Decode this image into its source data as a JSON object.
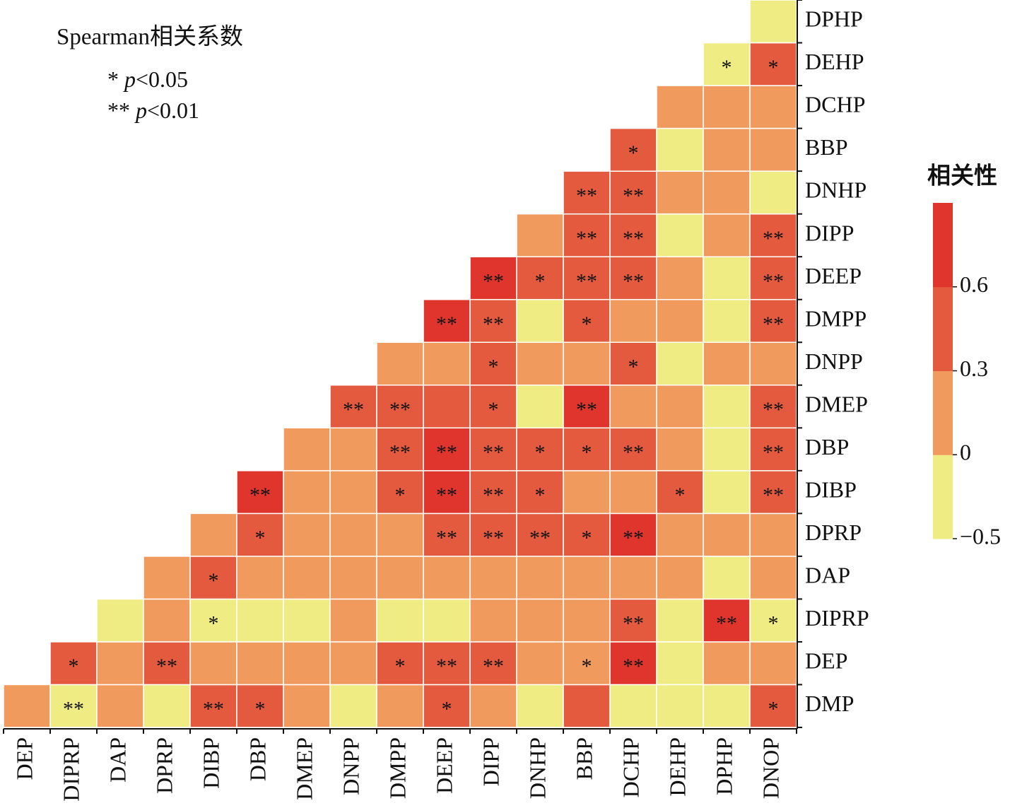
{
  "chart_data": {
    "type": "heatmap",
    "title": "Spearman相关系数",
    "significance": [
      {
        "mark": "*",
        "var": "p",
        "condition": "<0.05"
      },
      {
        "mark": "**",
        "var": "p",
        "condition": "<0.01"
      }
    ],
    "x": [
      "DEP",
      "DIPRP",
      "DAP",
      "DPRP",
      "DIBP",
      "DBP",
      "DMEP",
      "DNPP",
      "DMPP",
      "DEEP",
      "DIPP",
      "DNHP",
      "BBP",
      "DCHP",
      "DEHP",
      "DPHP",
      "DNOP"
    ],
    "y": [
      "DMP",
      "DEP",
      "DIPRP",
      "DAP",
      "DPRP",
      "DIBP",
      "DBP",
      "DMEP",
      "DNPP",
      "DMPP",
      "DEEP",
      "DIPP",
      "DNHP",
      "BBP",
      "DCHP",
      "DEHP",
      "DPHP"
    ],
    "z": [
      [
        0.15,
        -0.2,
        0.15,
        -0.2,
        0.45,
        0.45,
        0.15,
        -0.2,
        0.15,
        0.45,
        0.15,
        -0.2,
        0.45,
        -0.2,
        -0.2,
        -0.2,
        0.45
      ],
      [
        null,
        0.45,
        0.15,
        0.45,
        0.15,
        0.15,
        0.15,
        0.15,
        0.45,
        0.45,
        0.45,
        0.15,
        0.15,
        0.7,
        -0.2,
        0.15,
        0.15
      ],
      [
        null,
        null,
        -0.2,
        0.15,
        -0.2,
        -0.2,
        -0.2,
        0.15,
        -0.2,
        -0.2,
        0.15,
        0.15,
        0.15,
        0.45,
        -0.2,
        0.7,
        -0.2
      ],
      [
        null,
        null,
        null,
        0.15,
        0.45,
        0.15,
        0.15,
        0.15,
        0.15,
        0.15,
        0.15,
        0.15,
        0.15,
        0.15,
        0.15,
        -0.2,
        0.15
      ],
      [
        null,
        null,
        null,
        null,
        0.15,
        0.45,
        0.15,
        0.15,
        0.15,
        0.45,
        0.45,
        0.45,
        0.45,
        0.7,
        0.15,
        0.15,
        0.15
      ],
      [
        null,
        null,
        null,
        null,
        null,
        0.7,
        0.15,
        0.15,
        0.45,
        0.7,
        0.45,
        0.45,
        0.15,
        0.15,
        0.45,
        -0.2,
        0.45
      ],
      [
        null,
        null,
        null,
        null,
        null,
        null,
        0.15,
        0.15,
        0.45,
        0.7,
        0.45,
        0.45,
        0.45,
        0.45,
        0.15,
        -0.2,
        0.45
      ],
      [
        null,
        null,
        null,
        null,
        null,
        null,
        null,
        0.45,
        0.45,
        0.45,
        0.45,
        -0.2,
        0.7,
        0.15,
        0.15,
        -0.2,
        0.45
      ],
      [
        null,
        null,
        null,
        null,
        null,
        null,
        null,
        null,
        0.15,
        0.15,
        0.45,
        0.15,
        0.15,
        0.45,
        -0.2,
        0.15,
        0.15
      ],
      [
        null,
        null,
        null,
        null,
        null,
        null,
        null,
        null,
        null,
        0.7,
        0.45,
        -0.2,
        0.45,
        0.15,
        0.15,
        -0.2,
        0.45
      ],
      [
        null,
        null,
        null,
        null,
        null,
        null,
        null,
        null,
        null,
        null,
        0.7,
        0.45,
        0.45,
        0.45,
        0.15,
        -0.2,
        0.45
      ],
      [
        null,
        null,
        null,
        null,
        null,
        null,
        null,
        null,
        null,
        null,
        null,
        0.15,
        0.45,
        0.45,
        -0.2,
        0.15,
        0.45
      ],
      [
        null,
        null,
        null,
        null,
        null,
        null,
        null,
        null,
        null,
        null,
        null,
        null,
        0.45,
        0.45,
        0.15,
        0.15,
        -0.2
      ],
      [
        null,
        null,
        null,
        null,
        null,
        null,
        null,
        null,
        null,
        null,
        null,
        null,
        null,
        0.45,
        -0.2,
        0.15,
        0.15
      ],
      [
        null,
        null,
        null,
        null,
        null,
        null,
        null,
        null,
        null,
        null,
        null,
        null,
        null,
        null,
        0.15,
        0.15,
        0.15
      ],
      [
        null,
        null,
        null,
        null,
        null,
        null,
        null,
        null,
        null,
        null,
        null,
        null,
        null,
        null,
        null,
        -0.2,
        0.45
      ],
      [
        null,
        null,
        null,
        null,
        null,
        null,
        null,
        null,
        null,
        null,
        null,
        null,
        null,
        null,
        null,
        null,
        -0.2
      ]
    ],
    "cell_labels": [
      [
        null,
        "**",
        null,
        null,
        "**",
        "*",
        null,
        null,
        null,
        "*",
        null,
        null,
        null,
        null,
        null,
        null,
        "*"
      ],
      [
        null,
        "*",
        null,
        "**",
        null,
        null,
        null,
        null,
        "*",
        "**",
        "**",
        null,
        "*",
        "**",
        null,
        null,
        null
      ],
      [
        null,
        null,
        null,
        null,
        "*",
        null,
        null,
        null,
        null,
        null,
        null,
        null,
        null,
        "**",
        null,
        "**",
        "*"
      ],
      [
        null,
        null,
        null,
        null,
        "*",
        null,
        null,
        null,
        null,
        null,
        null,
        null,
        null,
        null,
        null,
        null,
        null
      ],
      [
        null,
        null,
        null,
        null,
        null,
        "*",
        null,
        null,
        null,
        "**",
        "**",
        "**",
        "*",
        "**",
        null,
        null,
        null
      ],
      [
        null,
        null,
        null,
        null,
        null,
        "**",
        null,
        null,
        "*",
        "**",
        "**",
        "*",
        null,
        null,
        "*",
        null,
        "**"
      ],
      [
        null,
        null,
        null,
        null,
        null,
        null,
        null,
        null,
        "**",
        "**",
        "**",
        "*",
        "*",
        "**",
        null,
        null,
        "**"
      ],
      [
        null,
        null,
        null,
        null,
        null,
        null,
        null,
        "**",
        "**",
        null,
        "*",
        null,
        "**",
        null,
        null,
        null,
        "**"
      ],
      [
        null,
        null,
        null,
        null,
        null,
        null,
        null,
        null,
        null,
        null,
        "*",
        null,
        null,
        "*",
        null,
        null,
        null
      ],
      [
        null,
        null,
        null,
        null,
        null,
        null,
        null,
        null,
        null,
        "**",
        "**",
        null,
        "*",
        null,
        null,
        null,
        "**"
      ],
      [
        null,
        null,
        null,
        null,
        null,
        null,
        null,
        null,
        null,
        null,
        "**",
        "*",
        "**",
        "**",
        null,
        null,
        "**"
      ],
      [
        null,
        null,
        null,
        null,
        null,
        null,
        null,
        null,
        null,
        null,
        null,
        null,
        "**",
        "**",
        null,
        null,
        "**"
      ],
      [
        null,
        null,
        null,
        null,
        null,
        null,
        null,
        null,
        null,
        null,
        null,
        null,
        "**",
        "**",
        null,
        null,
        null
      ],
      [
        null,
        null,
        null,
        null,
        null,
        null,
        null,
        null,
        null,
        null,
        null,
        null,
        null,
        "*",
        null,
        null,
        null
      ],
      [
        null,
        null,
        null,
        null,
        null,
        null,
        null,
        null,
        null,
        null,
        null,
        null,
        null,
        null,
        null,
        null,
        null
      ],
      [
        null,
        null,
        null,
        null,
        null,
        null,
        null,
        null,
        null,
        null,
        null,
        null,
        null,
        null,
        null,
        "*",
        "*"
      ],
      [
        null,
        null,
        null,
        null,
        null,
        null,
        null,
        null,
        null,
        null,
        null,
        null,
        null,
        null,
        null,
        null,
        null
      ]
    ],
    "colorbar": {
      "title": "相关性",
      "ticks": [
        {
          "value": -0.5,
          "label": "−0.5"
        },
        0,
        0.3,
        0.6
      ],
      "colors": [
        "#f0ec84",
        "#f09a5e",
        "#e45a3f",
        "#e0352d"
      ]
    }
  }
}
